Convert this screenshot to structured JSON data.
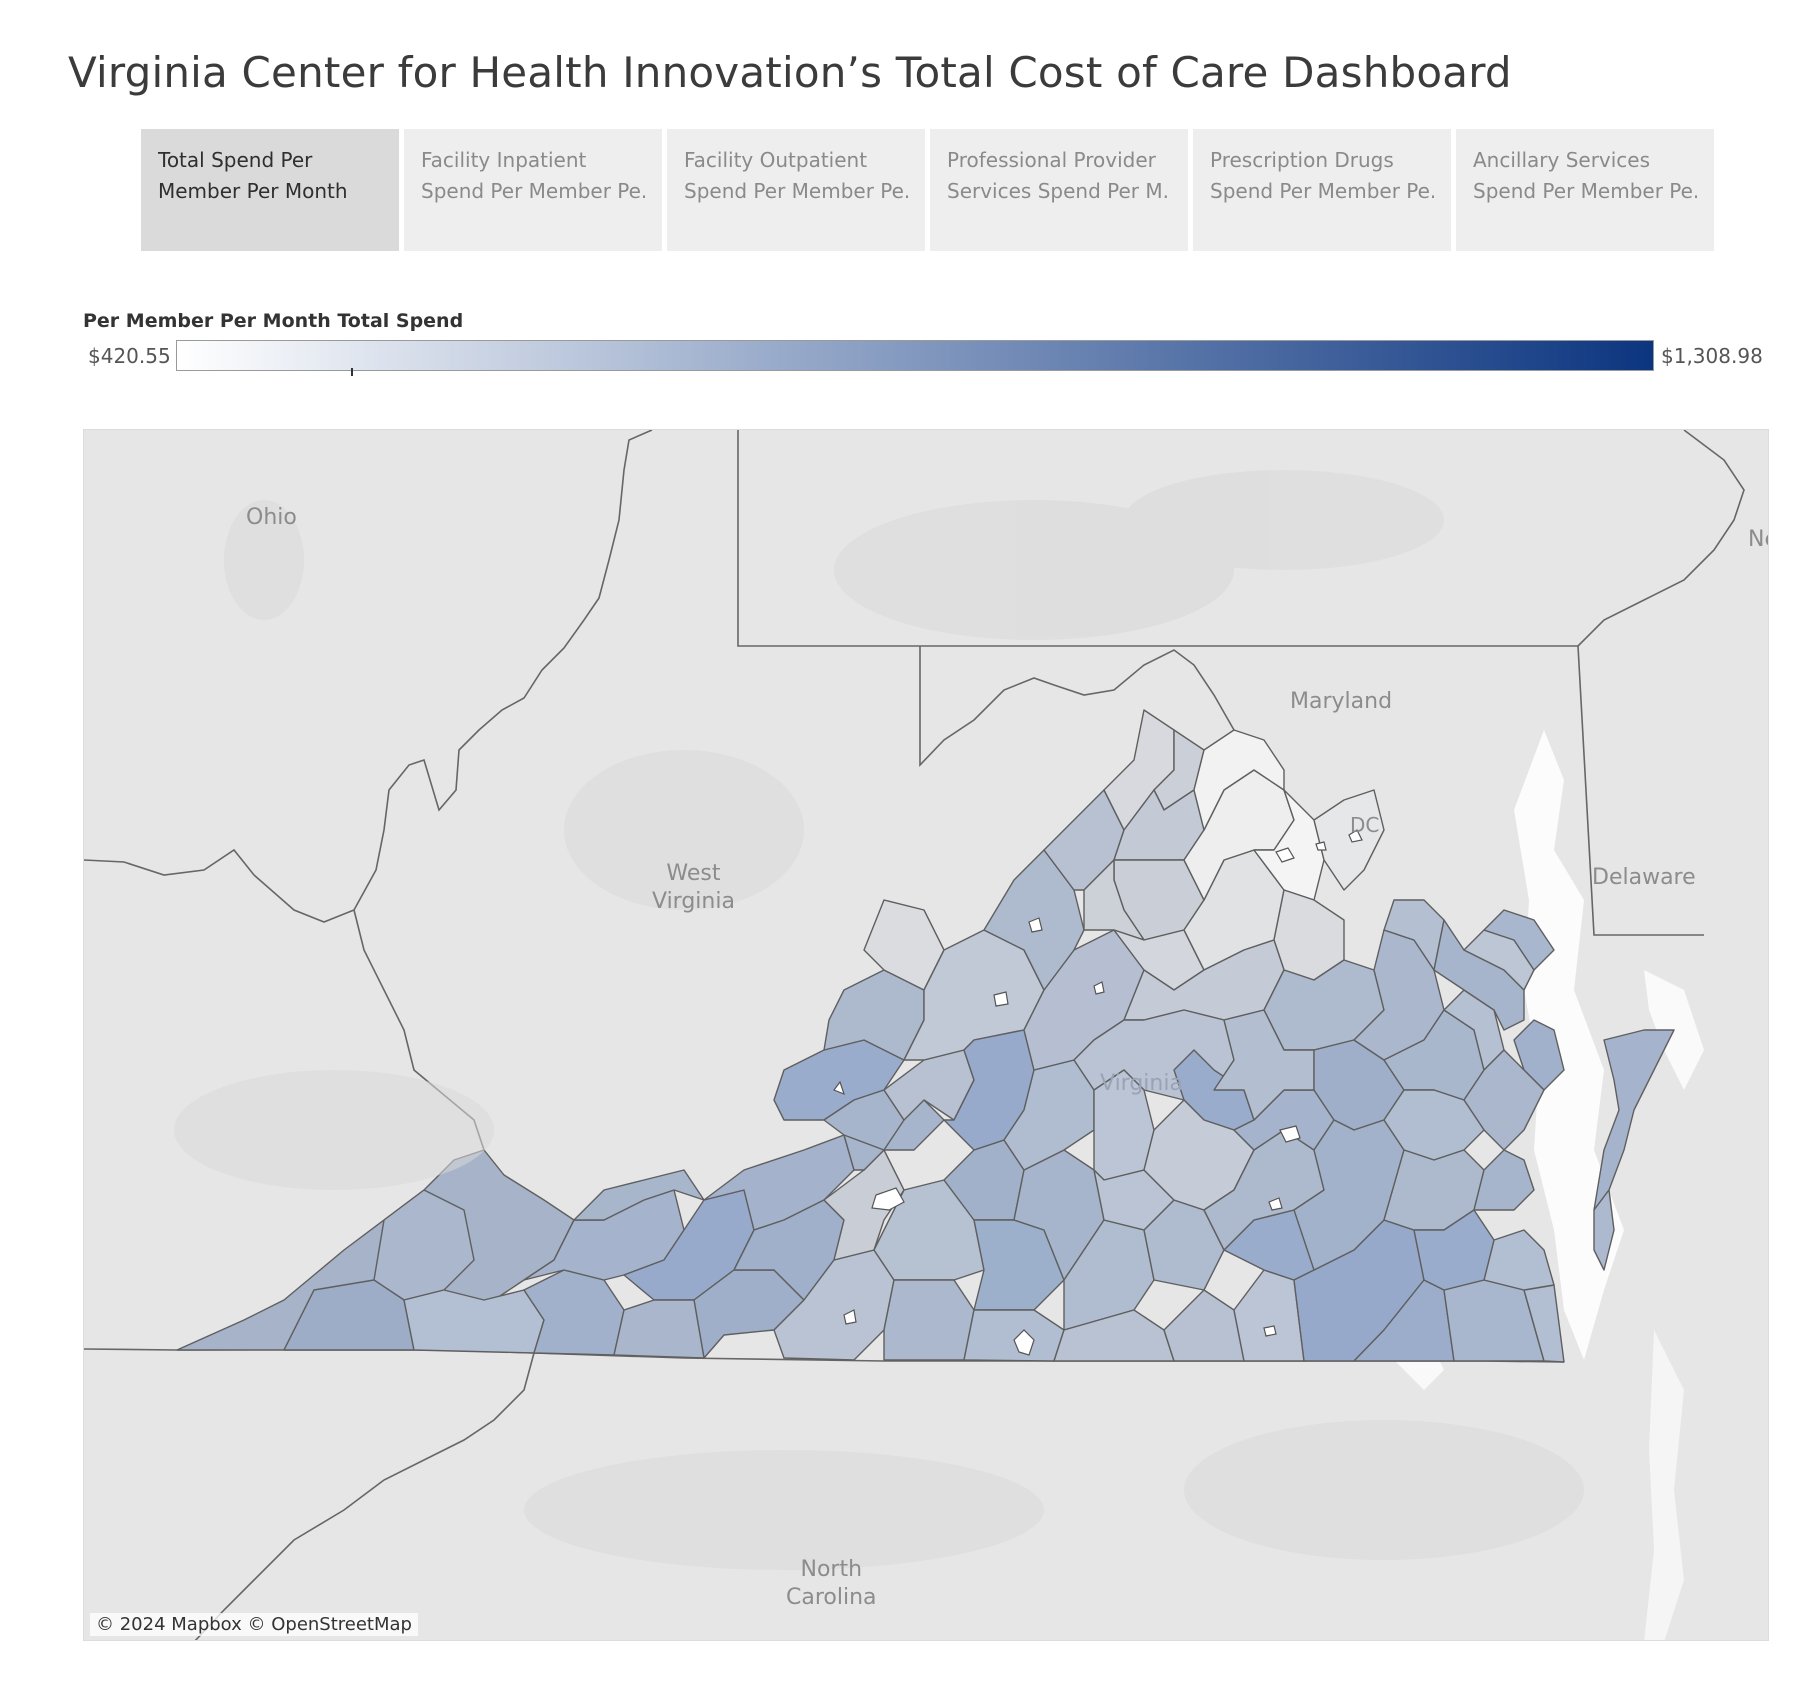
{
  "title": "Virginia Center for Health Innovation’s Total Cost of Care Dashboard",
  "tabs": [
    {
      "line1": "Total Spend Per",
      "line2": "Member Per Month",
      "active": true
    },
    {
      "line1": "Facility Inpatient",
      "line2": "Spend Per Member Pe..",
      "active": false
    },
    {
      "line1": "Facility Outpatient",
      "line2": "Spend Per Member Pe..",
      "active": false
    },
    {
      "line1": "Professional Provider",
      "line2": "Services Spend Per M..",
      "active": false
    },
    {
      "line1": "Prescription Drugs",
      "line2": "Spend Per Member Pe..",
      "active": false
    },
    {
      "line1": "Ancillary Services",
      "line2": "Spend Per Member Pe..",
      "active": false
    }
  ],
  "legend": {
    "title": "Per Member Per Month Total Spend",
    "min_label": "$420.55",
    "max_label": "$1,308.98",
    "min_value": 420.55,
    "max_value": 1308.98,
    "color_low": "#ffffff",
    "color_mid": "#9aaccb",
    "color_high": "#0c3580"
  },
  "map": {
    "labels": {
      "ohio": "Ohio",
      "maryland": "Maryland",
      "dc": "DC",
      "wv_line1": "West",
      "wv_line2": "Virginia",
      "delaware": "Delaware",
      "virginia": "Virginia",
      "nc_line1": "North",
      "nc_line2": "Carolina",
      "ne": "Ne"
    },
    "attribution": "© 2024 Mapbox © OpenStreetMap",
    "colors": {
      "background": "#e6e6e6",
      "border": "#666666",
      "county_stroke": "#5f5f5f"
    }
  }
}
